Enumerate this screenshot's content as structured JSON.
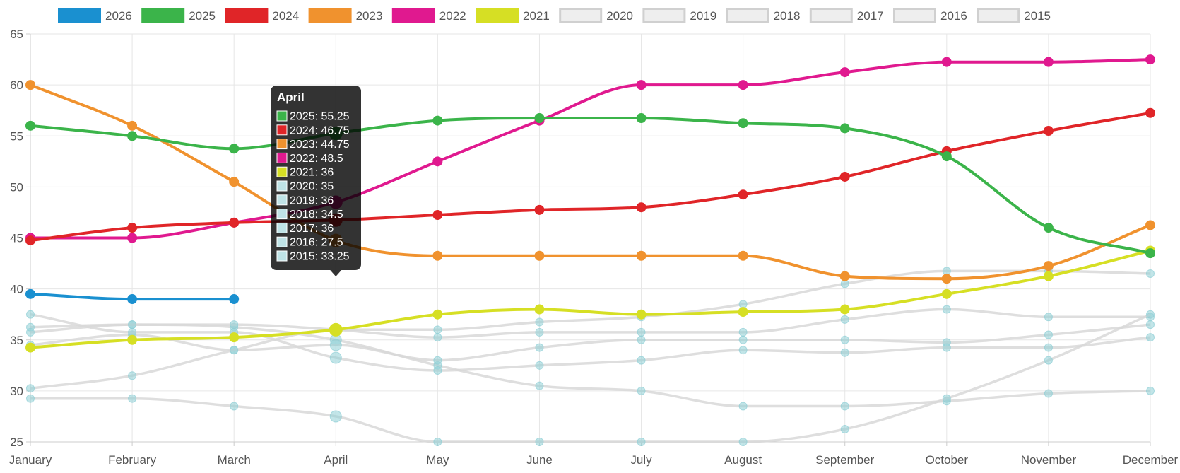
{
  "chart_data": {
    "type": "line",
    "categories": [
      "January",
      "February",
      "March",
      "April",
      "May",
      "June",
      "July",
      "August",
      "September",
      "October",
      "November",
      "December"
    ],
    "ylim": [
      25,
      65
    ],
    "yticks": [
      25,
      30,
      35,
      40,
      45,
      50,
      55,
      60,
      65
    ],
    "grid": true,
    "legend_position": "top",
    "series": [
      {
        "name": "2026",
        "color": "#1a90d0",
        "active": true,
        "values": [
          39.5,
          39.0,
          39.0,
          null,
          null,
          null,
          null,
          null,
          null,
          null,
          null,
          null
        ]
      },
      {
        "name": "2025",
        "color": "#3bb44a",
        "active": true,
        "values": [
          56.0,
          55.0,
          53.75,
          55.25,
          56.5,
          56.75,
          56.75,
          56.25,
          55.75,
          53.0,
          46.0,
          43.5
        ]
      },
      {
        "name": "2024",
        "color": "#e02528",
        "active": true,
        "values": [
          44.75,
          46.0,
          46.5,
          46.75,
          47.25,
          47.75,
          48.0,
          49.25,
          51.0,
          53.5,
          55.5,
          57.25
        ]
      },
      {
        "name": "2023",
        "color": "#f0922e",
        "active": true,
        "values": [
          60.0,
          56.0,
          50.5,
          44.75,
          43.25,
          43.25,
          43.25,
          43.25,
          41.25,
          41.0,
          42.25,
          46.25
        ]
      },
      {
        "name": "2022",
        "color": "#e0198f",
        "active": true,
        "values": [
          45.0,
          45.0,
          46.5,
          48.5,
          52.5,
          56.5,
          60.0,
          60.0,
          61.25,
          62.25,
          62.25,
          62.5
        ]
      },
      {
        "name": "2021",
        "color": "#d6df24",
        "active": true,
        "values": [
          34.25,
          35.0,
          35.25,
          36.0,
          37.5,
          38.0,
          37.5,
          37.75,
          38.0,
          39.5,
          41.25,
          43.75
        ]
      },
      {
        "name": "2020",
        "color": "#d8d8d8",
        "active": false,
        "values": [
          36.25,
          36.5,
          36.25,
          35.0,
          32.5,
          30.5,
          30.0,
          28.5,
          28.5,
          29.0,
          29.75,
          30.0
        ]
      },
      {
        "name": "2019",
        "color": "#d8d8d8",
        "active": false,
        "values": [
          35.75,
          36.5,
          36.5,
          36.0,
          35.25,
          35.75,
          35.75,
          35.75,
          37.0,
          38.0,
          37.25,
          37.25
        ]
      },
      {
        "name": "2018",
        "color": "#d8d8d8",
        "active": false,
        "values": [
          34.5,
          35.5,
          34.0,
          34.5,
          33.0,
          34.25,
          35.0,
          35.0,
          35.0,
          34.75,
          35.5,
          36.5
        ]
      },
      {
        "name": "2017",
        "color": "#d8d8d8",
        "active": false,
        "values": [
          30.25,
          31.5,
          34.0,
          36.0,
          36.0,
          36.75,
          37.25,
          38.5,
          40.5,
          41.75,
          41.75,
          41.5
        ]
      },
      {
        "name": "2016",
        "color": "#d8d8d8",
        "active": false,
        "values": [
          29.25,
          29.25,
          28.5,
          27.5,
          25.0,
          25.0,
          25.0,
          25.0,
          26.25,
          29.25,
          33.0,
          37.5
        ]
      },
      {
        "name": "2015",
        "color": "#d8d8d8",
        "active": false,
        "values": [
          37.5,
          35.75,
          35.75,
          33.25,
          32.0,
          32.5,
          33.0,
          34.0,
          33.75,
          34.25,
          34.25,
          35.25
        ]
      }
    ],
    "tooltip": {
      "title": "April",
      "lines": [
        {
          "text": "2025: 55.25",
          "color": "#3bb44a"
        },
        {
          "text": "2024: 46.75",
          "color": "#e02528"
        },
        {
          "text": "2023: 44.75",
          "color": "#f0922e"
        },
        {
          "text": "2022: 48.5",
          "color": "#e0198f"
        },
        {
          "text": "2021: 36",
          "color": "#d6df24"
        },
        {
          "text": "2020: 35",
          "color": "#bfe3e6"
        },
        {
          "text": "2019: 36",
          "color": "#bfe3e6"
        },
        {
          "text": "2018: 34.5",
          "color": "#bfe3e6"
        },
        {
          "text": "2017: 36",
          "color": "#bfe3e6"
        },
        {
          "text": "2016: 27.5",
          "color": "#bfe3e6"
        },
        {
          "text": "2015: 33.25",
          "color": "#bfe3e6"
        }
      ]
    },
    "hidden_point_color": "#8fcfd6"
  }
}
